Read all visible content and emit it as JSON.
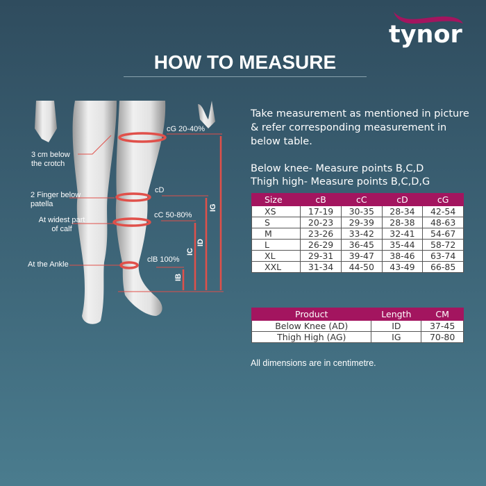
{
  "brand": {
    "name": "tynor",
    "swoosh_color": "#a3155f"
  },
  "title": "HOW TO MEASURE",
  "instructions": {
    "intro": "Take measurement as mentioned in picture & refer corresponding measurement in below table.",
    "below_knee": "Below knee- Measure points B,C,D",
    "thigh_high": "Thigh high- Measure points B,C,D,G"
  },
  "figure": {
    "left_labels": {
      "crotch": "3 cm below the crotch",
      "patella": "2 Finger below patella",
      "calf": "At widest part of calf",
      "ankle": "At the Ankle"
    },
    "right_labels": {
      "cG": "cG 20-40%",
      "cD": "cD",
      "cC": "cC 50-80%",
      "cB": "clB 100%"
    },
    "lengths": {
      "IG": "IG",
      "ID": "ID",
      "IC": "IC",
      "IB": "IB"
    },
    "marker_color": "#e0504a"
  },
  "size_table": {
    "headers": [
      "Size",
      "cB",
      "cC",
      "cD",
      "cG"
    ],
    "rows": [
      [
        "XS",
        "17-19",
        "30-35",
        "28-34",
        "42-54"
      ],
      [
        "S",
        "20-23",
        "29-39",
        "28-38",
        "48-63"
      ],
      [
        "M",
        "23-26",
        "33-42",
        "32-41",
        "54-67"
      ],
      [
        "L",
        "26-29",
        "36-45",
        "35-44",
        "58-72"
      ],
      [
        "XL",
        "29-31",
        "39-47",
        "38-46",
        "63-74"
      ],
      [
        "XXL",
        "31-34",
        "44-50",
        "43-49",
        "66-85"
      ]
    ]
  },
  "length_table": {
    "headers": [
      "Product",
      "Length",
      "CM"
    ],
    "rows": [
      [
        "Below Knee (AD)",
        "ID",
        "37-45"
      ],
      [
        "Thigh High (AG)",
        "IG",
        "70-80"
      ]
    ]
  },
  "note": "All dimensions are in centimetre.",
  "colors": {
    "header": "#a3155f",
    "background_top": "#2f4c5e",
    "background_bottom": "#4a7c8e"
  }
}
